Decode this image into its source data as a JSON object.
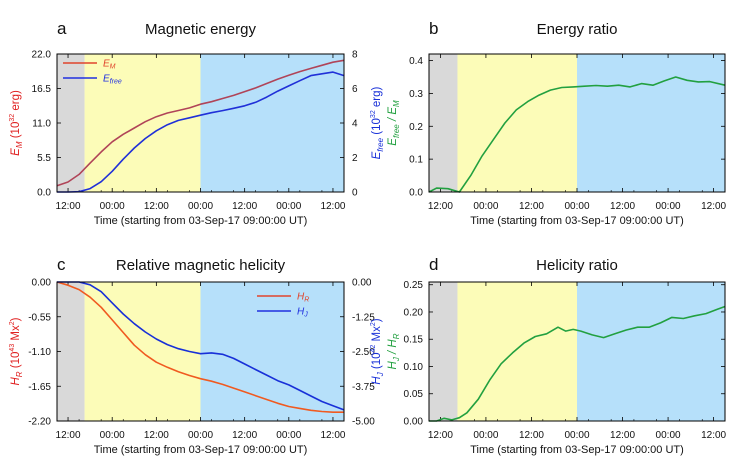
{
  "shared": {
    "x_ticks": [
      "12:00",
      "00:00",
      "12:00",
      "00:00",
      "12:00",
      "00:00",
      "12:00"
    ],
    "x_tick_hours": [
      3,
      15,
      27,
      39,
      51,
      63,
      75
    ],
    "xlabel": "Time (starting from 03-Sep-17 09:00:00 UT)",
    "xlim": [
      0,
      78
    ],
    "bands": [
      {
        "from": 0,
        "to": 7.5,
        "color": "#d9d9d9"
      },
      {
        "from": 7.5,
        "to": 39,
        "color": "#fcfcb8"
      },
      {
        "from": 39,
        "to": 78,
        "color": "#b6e0fa"
      }
    ]
  },
  "chart_data": [
    {
      "panel": "a",
      "type": "line",
      "title": "Magnetic energy",
      "xlabel": "Time (starting from 03-Sep-17 09:00:00 UT)",
      "ylabel_left": {
        "main": "E",
        "sub": "M",
        "unit": "(10",
        "exp": "32",
        "tail": " erg)"
      },
      "ylabel_right": {
        "main": "E",
        "sub": "free",
        "unit": "(10",
        "exp": "32",
        "tail": " erg)"
      },
      "left_ylim": [
        0,
        22
      ],
      "left_ticks": [
        "0.0",
        "5.5",
        "11.0",
        "16.5",
        "22.0"
      ],
      "right_ylim": [
        0,
        8
      ],
      "right_ticks": [
        "0",
        "2",
        "4",
        "6",
        "8"
      ],
      "legend": [
        {
          "main": "E",
          "sub": "M",
          "color": "#e0442c"
        },
        {
          "main": "E",
          "sub": "free",
          "color": "#2030e0"
        }
      ],
      "series": [
        {
          "name": "E_M",
          "axis": "left",
          "color": "#b04458",
          "x": [
            0,
            3,
            6,
            9,
            12,
            15,
            18,
            21,
            24,
            27,
            30,
            33,
            36,
            39,
            42,
            45,
            48,
            51,
            54,
            57,
            60,
            63,
            66,
            69,
            72,
            75,
            78
          ],
          "y": [
            1.0,
            1.6,
            2.8,
            4.6,
            6.4,
            8.0,
            9.2,
            10.2,
            11.2,
            12.0,
            12.6,
            13.0,
            13.4,
            14.0,
            14.4,
            14.9,
            15.4,
            16.0,
            16.6,
            17.3,
            18.0,
            18.6,
            19.2,
            19.7,
            20.2,
            20.7,
            21.0
          ]
        },
        {
          "name": "E_free",
          "axis": "right",
          "color": "#2030d8",
          "x": [
            0,
            3,
            6,
            9,
            12,
            15,
            18,
            21,
            24,
            27,
            30,
            33,
            36,
            39,
            42,
            45,
            48,
            51,
            54,
            57,
            60,
            63,
            66,
            69,
            72,
            75,
            78
          ],
          "y": [
            0.0,
            0.0,
            0.02,
            0.2,
            0.6,
            1.2,
            1.9,
            2.55,
            3.1,
            3.55,
            3.9,
            4.15,
            4.3,
            4.45,
            4.6,
            4.72,
            4.85,
            5.0,
            5.2,
            5.5,
            5.85,
            6.15,
            6.45,
            6.75,
            6.85,
            6.95,
            6.75
          ]
        }
      ]
    },
    {
      "panel": "b",
      "type": "line",
      "title": "Energy ratio",
      "xlabel": "Time (starting from 03-Sep-17 09:00:00 UT)",
      "ylabel_left": {
        "main": "E",
        "sub": "free",
        "sep": " / E",
        "sub2": "M"
      },
      "left_ylim": [
        0,
        0.42
      ],
      "left_ticks": [
        "0.0",
        "0.1",
        "0.2",
        "0.3",
        "0.4"
      ],
      "left_tick_values": [
        0,
        0.1,
        0.2,
        0.3,
        0.4
      ],
      "series": [
        {
          "name": "E_free / E_M",
          "axis": "left",
          "color": "#22a040",
          "x": [
            0,
            2,
            5,
            8,
            11,
            14,
            17,
            20,
            23,
            26,
            29,
            32,
            35,
            38,
            41,
            44,
            47,
            50,
            53,
            56,
            59,
            62,
            65,
            68,
            71,
            74,
            78
          ],
          "y": [
            0.0,
            0.012,
            0.01,
            0.0,
            0.05,
            0.11,
            0.16,
            0.21,
            0.25,
            0.275,
            0.295,
            0.31,
            0.318,
            0.32,
            0.322,
            0.324,
            0.322,
            0.325,
            0.32,
            0.33,
            0.325,
            0.338,
            0.35,
            0.34,
            0.335,
            0.336,
            0.325
          ]
        }
      ]
    },
    {
      "panel": "c",
      "type": "line",
      "title": "Relative magnetic helicity",
      "xlabel": "Time (starting from 03-Sep-17 09:00:00 UT)",
      "ylabel_left": {
        "main": "H",
        "sub": "R",
        "unit": "(10",
        "exp": "43",
        "tail": " Mx",
        "exp2": "2",
        "tail2": ")"
      },
      "ylabel_right": {
        "main": "H",
        "sub": "J",
        "unit": "(10",
        "exp": "42",
        "tail": " Mx",
        "exp2": "2",
        "tail2": ")"
      },
      "left_ylim": [
        -2.2,
        0
      ],
      "left_ticks": [
        "0.00",
        "-0.55",
        "-1.10",
        "-1.65",
        "-2.20"
      ],
      "left_tick_values": [
        0,
        -0.55,
        -1.1,
        -1.65,
        -2.2
      ],
      "right_ylim": [
        -5.0,
        0
      ],
      "right_ticks": [
        "0.00",
        "-1.25",
        "-2.50",
        "-3.75",
        "-5.00"
      ],
      "right_tick_values": [
        0,
        -1.25,
        -2.5,
        -3.75,
        -5.0
      ],
      "legend": [
        {
          "main": "H",
          "sub": "R",
          "color": "#e0442c"
        },
        {
          "main": "H",
          "sub": "J",
          "color": "#2030e0"
        }
      ],
      "series": [
        {
          "name": "H_R",
          "axis": "left",
          "color": "#f05a20",
          "x": [
            0,
            3,
            6,
            9,
            12,
            15,
            18,
            21,
            24,
            27,
            30,
            33,
            36,
            39,
            42,
            45,
            48,
            51,
            54,
            57,
            60,
            63,
            66,
            69,
            72,
            75,
            78
          ],
          "y": [
            0.0,
            -0.05,
            -0.12,
            -0.24,
            -0.4,
            -0.6,
            -0.8,
            -1.0,
            -1.15,
            -1.27,
            -1.35,
            -1.42,
            -1.48,
            -1.53,
            -1.57,
            -1.62,
            -1.68,
            -1.74,
            -1.8,
            -1.86,
            -1.92,
            -1.97,
            -2.0,
            -2.03,
            -2.05,
            -2.06,
            -2.06
          ]
        },
        {
          "name": "H_J",
          "axis": "right",
          "color": "#1830d8",
          "x": [
            0,
            3,
            6,
            9,
            12,
            15,
            18,
            21,
            24,
            27,
            30,
            33,
            36,
            39,
            42,
            45,
            48,
            51,
            54,
            57,
            60,
            63,
            66,
            69,
            72,
            75,
            78
          ],
          "y": [
            0.0,
            0.0,
            0.0,
            -0.1,
            -0.35,
            -0.75,
            -1.15,
            -1.5,
            -1.8,
            -2.05,
            -2.25,
            -2.4,
            -2.5,
            -2.58,
            -2.55,
            -2.6,
            -2.75,
            -2.95,
            -3.15,
            -3.35,
            -3.55,
            -3.7,
            -3.9,
            -4.1,
            -4.3,
            -4.45,
            -4.6
          ]
        }
      ]
    },
    {
      "panel": "d",
      "type": "line",
      "title": "Helicity ratio",
      "xlabel": "Time (starting from 03-Sep-17 09:00:00 UT)",
      "ylabel_left": {
        "main": "H",
        "sub": "J",
        "sep": " / H",
        "sub2": "R"
      },
      "left_ylim": [
        0,
        0.255
      ],
      "left_ticks": [
        "0.00",
        "0.05",
        "0.10",
        "0.15",
        "0.20",
        "0.25"
      ],
      "left_tick_values": [
        0,
        0.05,
        0.1,
        0.15,
        0.2,
        0.25
      ],
      "series": [
        {
          "name": "H_J / H_R",
          "axis": "left",
          "color": "#22a040",
          "x": [
            0,
            2,
            4,
            6,
            8,
            10,
            13,
            16,
            19,
            22,
            25,
            28,
            31,
            34,
            36,
            38,
            40,
            43,
            46,
            49,
            52,
            55,
            58,
            61,
            64,
            67,
            70,
            73,
            76,
            78
          ],
          "y": [
            0.0,
            0.0,
            0.005,
            0.002,
            0.006,
            0.015,
            0.04,
            0.075,
            0.105,
            0.125,
            0.143,
            0.155,
            0.16,
            0.172,
            0.165,
            0.168,
            0.165,
            0.158,
            0.153,
            0.16,
            0.167,
            0.172,
            0.172,
            0.18,
            0.19,
            0.188,
            0.193,
            0.197,
            0.205,
            0.21
          ]
        }
      ]
    }
  ]
}
